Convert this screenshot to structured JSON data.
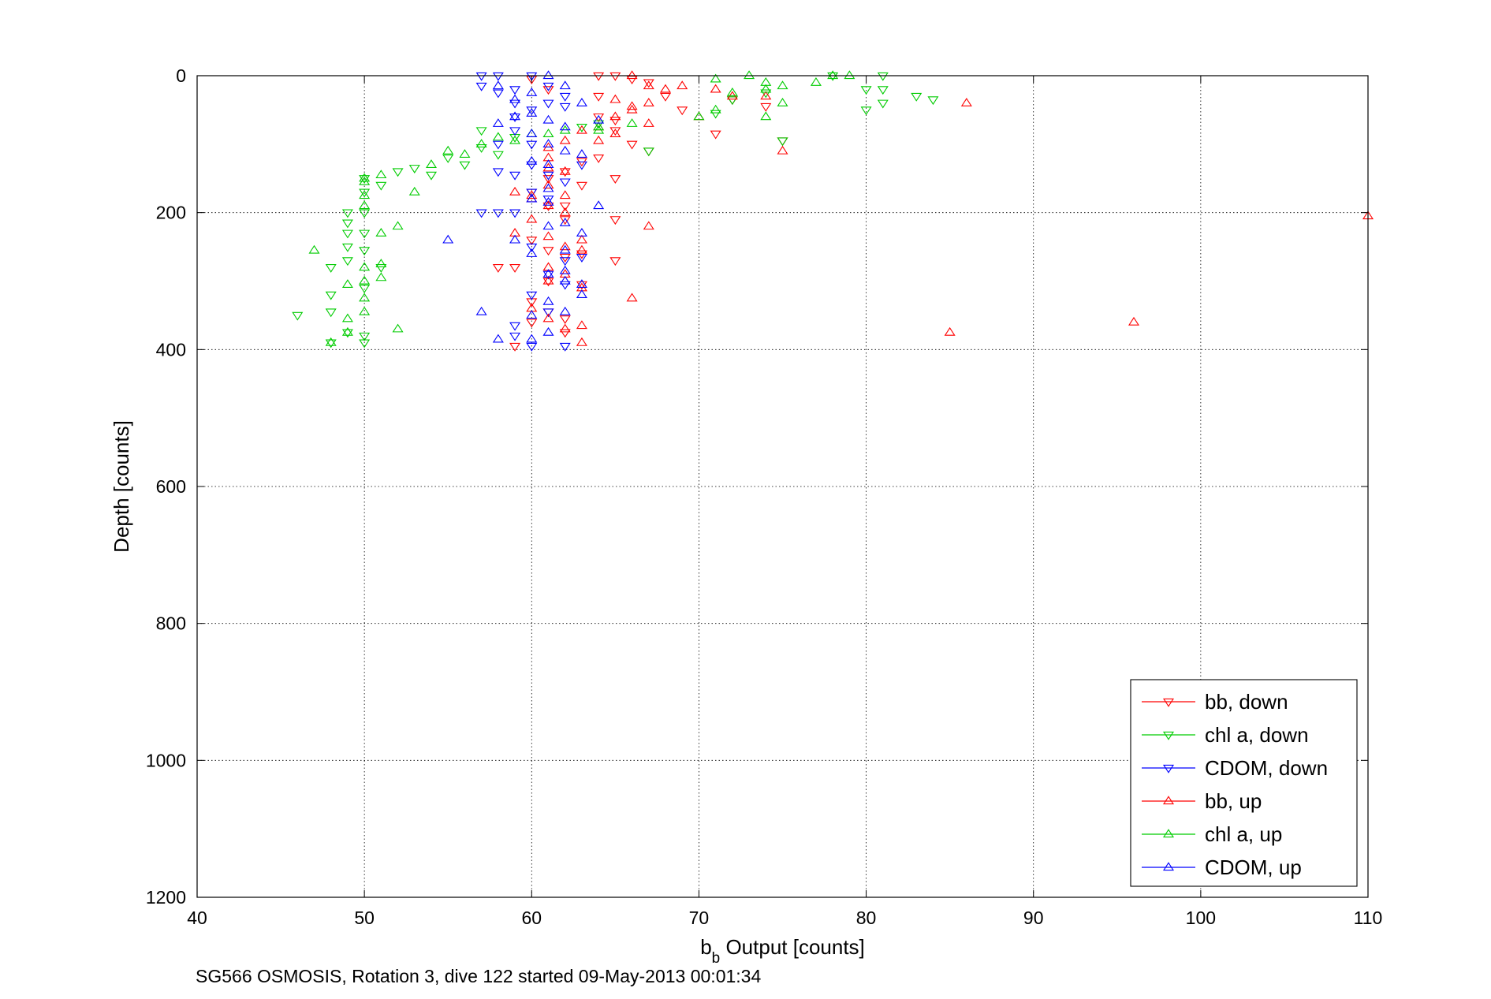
{
  "chart_data": {
    "type": "scatter",
    "title": "",
    "xlabel": {
      "main": "b",
      "sub": "b",
      "rest": " Output [counts]"
    },
    "ylabel": "Depth [counts]",
    "caption": "SG566 OSMOSIS, Rotation 3, dive 122 started 09-May-2013 00:01:34",
    "xlim": [
      40,
      110
    ],
    "ylim": [
      0,
      1200
    ],
    "y_reversed": true,
    "grid": true,
    "grid_style": "dotted",
    "legend_position": "bottom-right",
    "xticks": [
      "40",
      "50",
      "60",
      "70",
      "80",
      "90",
      "100",
      "110"
    ],
    "yticks": [
      "0",
      "200",
      "400",
      "600",
      "800",
      "1000",
      "1200"
    ],
    "xtick_values": [
      40,
      50,
      60,
      70,
      80,
      90,
      100,
      110
    ],
    "ytick_values": [
      0,
      200,
      400,
      600,
      800,
      1000,
      1200
    ],
    "series": [
      {
        "name": "bb, down",
        "color": "#ff0000",
        "marker": "triangle-down",
        "points": [
          [
            64,
            0
          ],
          [
            65,
            0
          ],
          [
            66,
            5
          ],
          [
            67,
            10
          ],
          [
            68,
            30
          ],
          [
            69,
            50
          ],
          [
            71,
            85
          ],
          [
            72,
            35
          ],
          [
            74,
            45
          ],
          [
            75,
            95
          ],
          [
            64,
            60
          ],
          [
            65,
            80
          ],
          [
            63,
            125
          ],
          [
            62,
            140
          ],
          [
            64,
            120
          ],
          [
            65,
            150
          ],
          [
            61,
            190
          ],
          [
            62,
            210
          ],
          [
            60,
            240
          ],
          [
            61,
            255
          ],
          [
            62,
            265
          ],
          [
            59,
            280
          ],
          [
            58,
            280
          ],
          [
            61,
            300
          ],
          [
            63,
            305
          ],
          [
            60,
            330
          ],
          [
            61,
            345
          ],
          [
            62,
            355
          ],
          [
            59,
            395
          ],
          [
            64,
            30
          ],
          [
            65,
            65
          ],
          [
            66,
            100
          ],
          [
            67,
            110
          ],
          [
            61,
            150
          ],
          [
            63,
            160
          ],
          [
            60,
            170
          ],
          [
            62,
            190
          ],
          [
            65,
            210
          ],
          [
            63,
            260
          ],
          [
            65,
            270
          ],
          [
            60,
            360
          ],
          [
            62,
            375
          ],
          [
            60,
            5
          ],
          [
            61,
            20
          ]
        ]
      },
      {
        "name": "chl a, down",
        "color": "#00cc00",
        "marker": "triangle-down",
        "points": [
          [
            78,
            0
          ],
          [
            81,
            0
          ],
          [
            80,
            20
          ],
          [
            81,
            20
          ],
          [
            83,
            30
          ],
          [
            84,
            35
          ],
          [
            80,
            50
          ],
          [
            74,
            25
          ],
          [
            72,
            35
          ],
          [
            71,
            55
          ],
          [
            67,
            110
          ],
          [
            64,
            70
          ],
          [
            59,
            90
          ],
          [
            57,
            80
          ],
          [
            56,
            130
          ],
          [
            55,
            120
          ],
          [
            52,
            140
          ],
          [
            51,
            160
          ],
          [
            50,
            150
          ],
          [
            50,
            170
          ],
          [
            50,
            200
          ],
          [
            49,
            200
          ],
          [
            49,
            215
          ],
          [
            49,
            230
          ],
          [
            49,
            250
          ],
          [
            48,
            280
          ],
          [
            48,
            320
          ],
          [
            48,
            345
          ],
          [
            46,
            350
          ],
          [
            48,
            390
          ],
          [
            50,
            380
          ],
          [
            50,
            390
          ],
          [
            51,
            280
          ],
          [
            50,
            310
          ],
          [
            49,
            270
          ],
          [
            53,
            135
          ],
          [
            54,
            145
          ],
          [
            57,
            105
          ],
          [
            58,
            115
          ],
          [
            63,
            75
          ],
          [
            75,
            95
          ],
          [
            81,
            40
          ],
          [
            49,
            375
          ],
          [
            50,
            255
          ],
          [
            50,
            230
          ]
        ]
      },
      {
        "name": "CDOM, down",
        "color": "#0000ff",
        "marker": "triangle-down",
        "points": [
          [
            57,
            0
          ],
          [
            58,
            0
          ],
          [
            57,
            15
          ],
          [
            58,
            25
          ],
          [
            59,
            20
          ],
          [
            59,
            40
          ],
          [
            60,
            50
          ],
          [
            61,
            40
          ],
          [
            62,
            45
          ],
          [
            59,
            80
          ],
          [
            58,
            100
          ],
          [
            60,
            130
          ],
          [
            61,
            145
          ],
          [
            62,
            155
          ],
          [
            58,
            140
          ],
          [
            59,
            145
          ],
          [
            60,
            170
          ],
          [
            61,
            180
          ],
          [
            59,
            200
          ],
          [
            57,
            200
          ],
          [
            58,
            200
          ],
          [
            60,
            250
          ],
          [
            62,
            270
          ],
          [
            63,
            265
          ],
          [
            61,
            290
          ],
          [
            62,
            305
          ],
          [
            60,
            320
          ],
          [
            61,
            345
          ],
          [
            59,
            365
          ],
          [
            59,
            380
          ],
          [
            60,
            395
          ],
          [
            62,
            395
          ],
          [
            60,
            0
          ],
          [
            61,
            15
          ],
          [
            62,
            30
          ],
          [
            59,
            60
          ],
          [
            60,
            100
          ],
          [
            63,
            130
          ]
        ]
      },
      {
        "name": "bb, up",
        "color": "#ff0000",
        "marker": "triangle-up",
        "points": [
          [
            66,
            0
          ],
          [
            67,
            15
          ],
          [
            68,
            20
          ],
          [
            69,
            15
          ],
          [
            67,
            40
          ],
          [
            66,
            45
          ],
          [
            65,
            60
          ],
          [
            64,
            75
          ],
          [
            63,
            80
          ],
          [
            62,
            95
          ],
          [
            61,
            105
          ],
          [
            61,
            120
          ],
          [
            61,
            135
          ],
          [
            62,
            140
          ],
          [
            61,
            160
          ],
          [
            62,
            175
          ],
          [
            60,
            180
          ],
          [
            61,
            190
          ],
          [
            62,
            200
          ],
          [
            60,
            210
          ],
          [
            59,
            230
          ],
          [
            61,
            235
          ],
          [
            63,
            240
          ],
          [
            62,
            250
          ],
          [
            63,
            255
          ],
          [
            61,
            280
          ],
          [
            62,
            290
          ],
          [
            61,
            300
          ],
          [
            60,
            340
          ],
          [
            61,
            355
          ],
          [
            63,
            365
          ],
          [
            62,
            370
          ],
          [
            63,
            390
          ],
          [
            65,
            35
          ],
          [
            66,
            50
          ],
          [
            67,
            70
          ],
          [
            70,
            60
          ],
          [
            71,
            20
          ],
          [
            72,
            30
          ],
          [
            74,
            30
          ],
          [
            75,
            110
          ],
          [
            86,
            40
          ],
          [
            110,
            205
          ],
          [
            85,
            375
          ],
          [
            96,
            360
          ],
          [
            64,
            95
          ],
          [
            65,
            85
          ],
          [
            66,
            325
          ],
          [
            63,
            310
          ],
          [
            59,
            170
          ],
          [
            60,
            175
          ],
          [
            67,
            220
          ]
        ]
      },
      {
        "name": "chl a, up",
        "color": "#00cc00",
        "marker": "triangle-up",
        "points": [
          [
            73,
            0
          ],
          [
            74,
            10
          ],
          [
            71,
            5
          ],
          [
            75,
            15
          ],
          [
            77,
            10
          ],
          [
            79,
            0
          ],
          [
            78,
            0
          ],
          [
            74,
            20
          ],
          [
            75,
            40
          ],
          [
            74,
            60
          ],
          [
            72,
            25
          ],
          [
            71,
            50
          ],
          [
            70,
            60
          ],
          [
            66,
            70
          ],
          [
            64,
            75
          ],
          [
            61,
            85
          ],
          [
            59,
            95
          ],
          [
            56,
            115
          ],
          [
            55,
            110
          ],
          [
            54,
            130
          ],
          [
            53,
            170
          ],
          [
            52,
            220
          ],
          [
            51,
            230
          ],
          [
            51,
            275
          ],
          [
            51,
            295
          ],
          [
            50,
            325
          ],
          [
            50,
            345
          ],
          [
            49,
            355
          ],
          [
            49,
            375
          ],
          [
            48,
            390
          ],
          [
            47,
            255
          ],
          [
            49,
            305
          ],
          [
            50,
            300
          ],
          [
            50,
            280
          ],
          [
            50,
            150
          ],
          [
            50,
            155
          ],
          [
            50,
            175
          ],
          [
            50,
            190
          ],
          [
            51,
            145
          ],
          [
            52,
            370
          ],
          [
            57,
            100
          ],
          [
            58,
            90
          ],
          [
            60,
            85
          ],
          [
            62,
            80
          ],
          [
            64,
            80
          ]
        ]
      },
      {
        "name": "CDOM, up",
        "color": "#0000ff",
        "marker": "triangle-up",
        "points": [
          [
            61,
            0
          ],
          [
            62,
            15
          ],
          [
            60,
            25
          ],
          [
            59,
            35
          ],
          [
            60,
            55
          ],
          [
            63,
            40
          ],
          [
            64,
            65
          ],
          [
            62,
            75
          ],
          [
            60,
            85
          ],
          [
            61,
            100
          ],
          [
            62,
            110
          ],
          [
            63,
            115
          ],
          [
            60,
            125
          ],
          [
            61,
            130
          ],
          [
            61,
            165
          ],
          [
            60,
            180
          ],
          [
            61,
            185
          ],
          [
            64,
            190
          ],
          [
            62,
            215
          ],
          [
            61,
            220
          ],
          [
            63,
            230
          ],
          [
            59,
            240
          ],
          [
            55,
            240
          ],
          [
            60,
            260
          ],
          [
            62,
            255
          ],
          [
            62,
            285
          ],
          [
            61,
            290
          ],
          [
            63,
            305
          ],
          [
            62,
            300
          ],
          [
            61,
            330
          ],
          [
            60,
            350
          ],
          [
            62,
            345
          ],
          [
            61,
            375
          ],
          [
            60,
            385
          ],
          [
            58,
            385
          ],
          [
            57,
            345
          ],
          [
            63,
            320
          ],
          [
            59,
            60
          ],
          [
            61,
            65
          ],
          [
            58,
            70
          ],
          [
            58,
            15
          ]
        ]
      }
    ]
  }
}
